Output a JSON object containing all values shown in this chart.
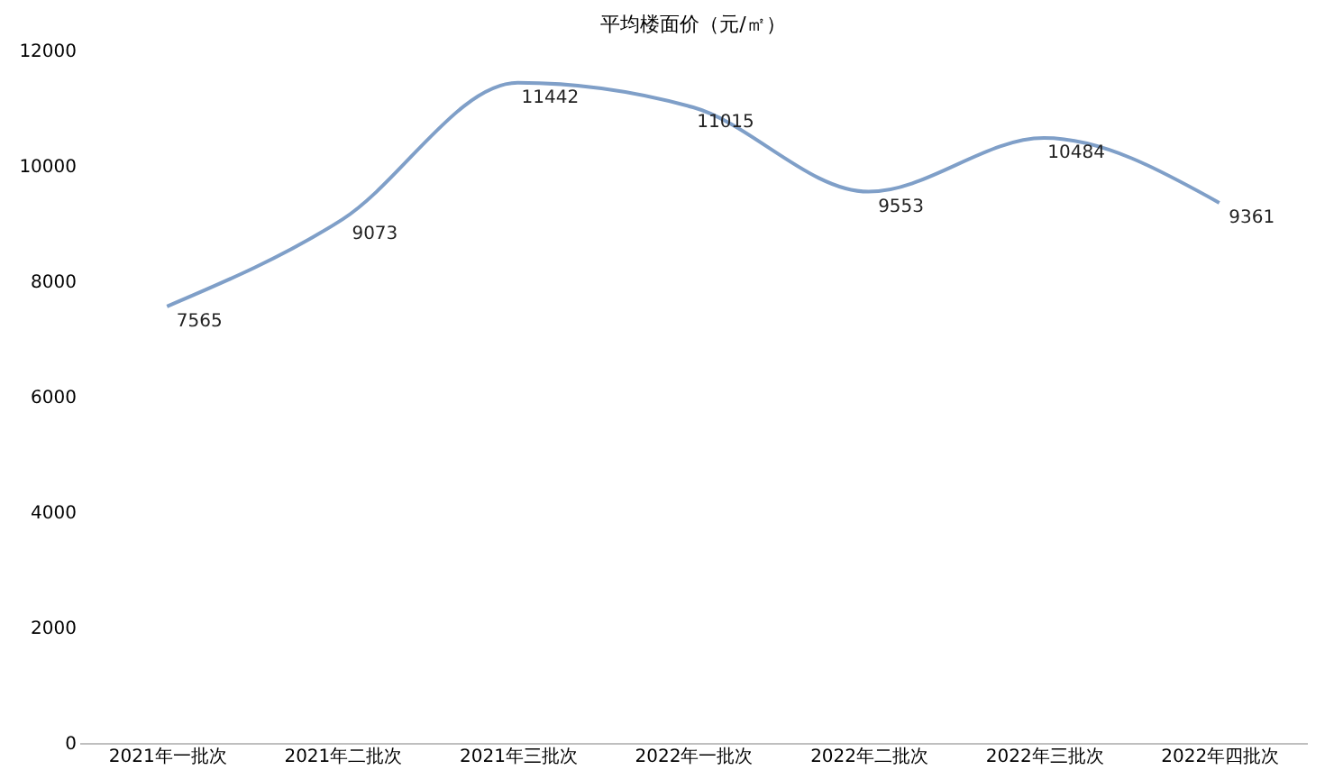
{
  "chart_data": {
    "type": "line",
    "title": "平均楼面价（元/㎡）",
    "categories": [
      "2021年一批次",
      "2021年二批次",
      "2021年三批次",
      "2022年一批次",
      "2022年二批次",
      "2022年三批次",
      "2022年四批次"
    ],
    "series": [
      {
        "color": "#7f9fc8",
        "values": [
          7565,
          9073,
          11442,
          11015,
          9553,
          10484,
          9361
        ]
      }
    ],
    "ylim": [
      0,
      12000
    ],
    "yticks": [
      0,
      2000,
      4000,
      6000,
      8000,
      10000,
      12000
    ],
    "data_labels": true,
    "grid": false,
    "legend": false,
    "marker": "none",
    "line_style": "solid"
  }
}
